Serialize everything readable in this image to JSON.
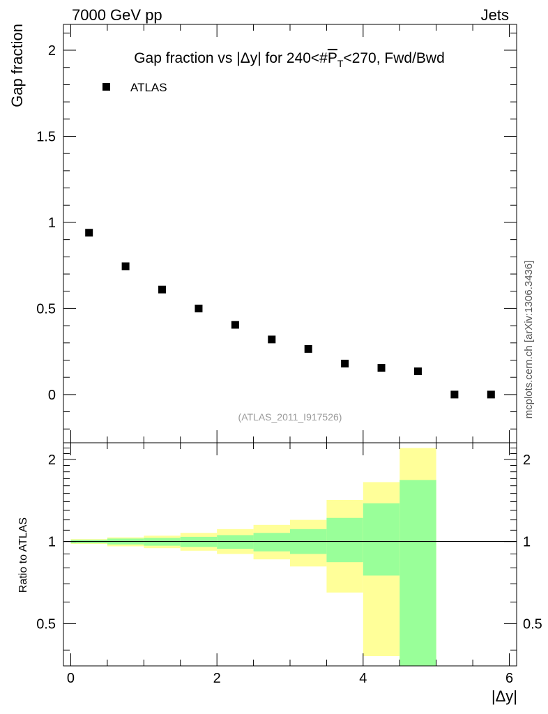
{
  "header": {
    "energy_label": "7000 GeV pp",
    "process_label": "Jets"
  },
  "watermark": "mcplots.cern.ch [arXiv:1306.3436]",
  "colors": {
    "inner_band": "#99ff99",
    "outer_band": "#ffff99",
    "marker": "#000000",
    "ref_label": "#999999"
  },
  "chart_data": [
    {
      "type": "scatter",
      "title": "Gap fraction vs |Δy| for 240<#bar{P_{T}}<270, Fwd/Bwd",
      "title_parts": {
        "pre": "Gap fraction vs |Δy| for 240<#",
        "p": "P",
        "sub": "T",
        "post": "<270, Fwd/Bwd"
      },
      "ylabel": "Gap fraction",
      "xlim": [
        -0.1,
        6.1
      ],
      "ylim": [
        -0.28,
        2.15
      ],
      "yticks": [
        0,
        0.5,
        1,
        1.5,
        2
      ],
      "ytick_labels": [
        "0",
        "0.5",
        "1",
        "1.5",
        "2"
      ],
      "grid": false,
      "legend_position": "top-left",
      "reference_label": "(ATLAS_2011_I917526)",
      "series": [
        {
          "name": "ATLAS",
          "x": [
            0.25,
            0.75,
            1.25,
            1.75,
            2.25,
            2.75,
            3.25,
            3.75,
            4.25,
            4.75,
            5.25,
            5.75
          ],
          "y": [
            0.94,
            0.745,
            0.61,
            0.5,
            0.405,
            0.32,
            0.265,
            0.18,
            0.155,
            0.135,
            0.0,
            0.0
          ]
        }
      ]
    },
    {
      "type": "area",
      "ylabel": "Ratio to ATLAS",
      "xlabel": "|Δy|",
      "xlim": [
        -0.1,
        6.1
      ],
      "ylim": [
        0.35,
        2.3
      ],
      "yticks": [
        0.5,
        1,
        2
      ],
      "ytick_labels": [
        "0.5",
        "1",
        "2"
      ],
      "xticks": [
        0,
        2,
        4,
        6
      ],
      "xtick_labels": [
        "0",
        "2",
        "4",
        "6"
      ],
      "reference_line": 1,
      "bins": [
        {
          "x_low": 0.0,
          "x_high": 0.5,
          "inner": [
            0.985,
            1.015
          ],
          "outer": [
            0.98,
            1.02
          ]
        },
        {
          "x_low": 0.5,
          "x_high": 1.0,
          "inner": [
            0.975,
            1.025
          ],
          "outer": [
            0.96,
            1.035
          ]
        },
        {
          "x_low": 1.0,
          "x_high": 1.5,
          "inner": [
            0.965,
            1.03
          ],
          "outer": [
            0.945,
            1.05
          ]
        },
        {
          "x_low": 1.5,
          "x_high": 2.0,
          "inner": [
            0.955,
            1.04
          ],
          "outer": [
            0.925,
            1.075
          ]
        },
        {
          "x_low": 2.0,
          "x_high": 2.5,
          "inner": [
            0.94,
            1.055
          ],
          "outer": [
            0.9,
            1.11
          ]
        },
        {
          "x_low": 2.5,
          "x_high": 3.0,
          "inner": [
            0.92,
            1.075
          ],
          "outer": [
            0.86,
            1.15
          ]
        },
        {
          "x_low": 3.0,
          "x_high": 3.5,
          "inner": [
            0.9,
            1.11
          ],
          "outer": [
            0.81,
            1.2
          ]
        },
        {
          "x_low": 3.5,
          "x_high": 4.0,
          "inner": [
            0.84,
            1.22
          ],
          "outer": [
            0.65,
            1.42
          ]
        },
        {
          "x_low": 4.0,
          "x_high": 4.5,
          "inner": [
            0.75,
            1.38
          ],
          "outer": [
            0.38,
            1.65
          ]
        },
        {
          "x_low": 4.5,
          "x_high": 5.0,
          "inner": [
            0.3,
            1.68
          ],
          "outer": [
            0.3,
            2.2
          ]
        }
      ]
    }
  ]
}
